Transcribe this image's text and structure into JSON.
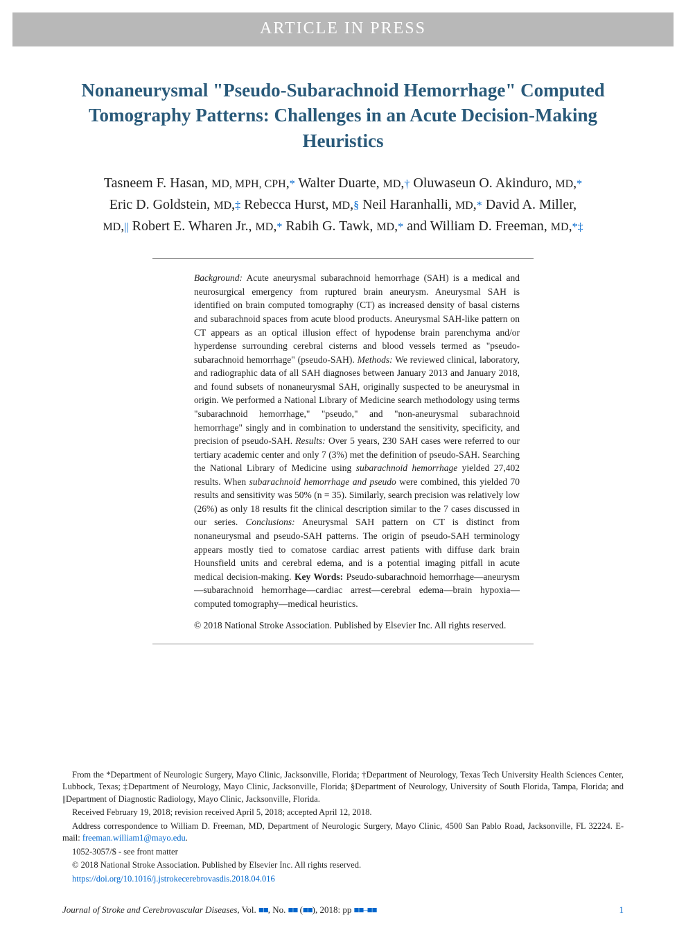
{
  "banner": "ARTICLE IN PRESS",
  "title": "Nonaneurysmal \"Pseudo-Subarachnoid Hemorrhage\" Computed Tomography Patterns: Challenges in an Acute Decision-Making Heuristics",
  "authors_html": "Tasneem F. Hasan, <span class='sc'>MD, MPH, CPH</span>,<span class='aff'>*</span> Walter Duarte, <span class='sc'>MD</span>,<span class='aff'>†</span> Oluwaseun O. Akinduro, <span class='sc'>MD</span>,<span class='aff'>*</span> Eric D. Goldstein, <span class='sc'>MD</span>,<span class='aff'>‡</span> Rebecca Hurst, <span class='sc'>MD</span>,<span class='aff'>§</span> Neil Haranhalli, <span class='sc'>MD</span>,<span class='aff'>*</span> David A. Miller, <span class='sc'>MD</span>,<span class='aff'>||</span> Robert E. Wharen Jr., <span class='sc'>MD</span>,<span class='aff'>*</span> Rabih G. Tawk, <span class='sc'>MD</span>,<span class='aff'>*</span> and William D. Freeman, <span class='sc'>MD</span><span class='aff'>*</span><span class='aff'>‡</span>",
  "authors": [
    {
      "name": "Tasneem F. Hasan",
      "degrees": "MD, MPH, CPH",
      "aff": "*"
    },
    {
      "name": "Walter Duarte",
      "degrees": "MD",
      "aff": "†"
    },
    {
      "name": "Oluwaseun O. Akinduro",
      "degrees": "MD",
      "aff": "*"
    },
    {
      "name": "Eric D. Goldstein",
      "degrees": "MD",
      "aff": "‡"
    },
    {
      "name": "Rebecca Hurst",
      "degrees": "MD",
      "aff": "§"
    },
    {
      "name": "Neil Haranhalli",
      "degrees": "MD",
      "aff": "*"
    },
    {
      "name": "David A. Miller",
      "degrees": "MD",
      "aff": "||"
    },
    {
      "name": "Robert E. Wharen Jr.",
      "degrees": "MD",
      "aff": "*"
    },
    {
      "name": "Rabih G. Tawk",
      "degrees": "MD",
      "aff": "*"
    },
    {
      "name": "William D. Freeman",
      "degrees": "MD",
      "aff": "*‡"
    }
  ],
  "abstract": {
    "background_label": "Background:",
    "background": " Acute aneurysmal subarachnoid hemorrhage (SAH) is a medical and neurosurgical emergency from ruptured brain aneurysm. Aneurysmal SAH is identified on brain computed tomography (CT) as increased density of basal cisterns and subarachnoid spaces from acute blood products. Aneurysmal SAH-like pattern on CT appears as an optical illusion effect of hypodense brain parenchyma and/or hyperdense surrounding cerebral cisterns and blood vessels termed as \"pseudo-subarachnoid hemorrhage\" (pseudo-SAH). ",
    "methods_label": "Methods:",
    "methods": " We reviewed clinical, laboratory, and radiographic data of all SAH diagnoses between January 2013 and January 2018, and found subsets of nonaneurysmal SAH, originally suspected to be aneurysmal in origin. We performed a National Library of Medicine search methodology using terms \"subarachnoid hemorrhage,\" \"pseudo,\" and \"non-aneurysmal subarachnoid hemorrhage\" singly and in combination to understand the sensitivity, specificity, and precision of pseudo-SAH. ",
    "results_label": "Results:",
    "results": " Over 5 years, 230 SAH cases were referred to our tertiary academic center and only 7 (3%) met the definition of pseudo-SAH. Searching the National Library of Medicine using subarachnoid hemorrhage yielded 27,402 results. When subarachnoid hemorrhage and pseudo were combined, this yielded 70 results and sensitivity was 50% (n = 35). Similarly, search precision was relatively low (26%) as only 18 results fit the clinical description similar to the 7 cases discussed in our series. ",
    "conclusions_label": "Conclusions:",
    "conclusions": " Aneurysmal SAH pattern on CT is distinct from nonaneurysmal and pseudo-SAH patterns. The origin of pseudo-SAH terminology appears mostly tied to comatose cardiac arrest patients with diffuse dark brain Hounsfield units and cerebral edema, and is a potential imaging pitfall in acute medical decision-making. ",
    "keywords_label": "Key Words:",
    "keywords": " Pseudo-subarachnoid hemorrhage—aneurysm—subarachnoid hemorrhage—cardiac arrest—cerebral edema—brain hypoxia—computed tomography—medical heuristics.",
    "copyright": "© 2018 National Stroke Association. Published by Elsevier Inc. All rights reserved."
  },
  "footnotes": {
    "affiliations": "From the *Department of Neurologic Surgery, Mayo Clinic, Jacksonville, Florida; †Department of Neurology, Texas Tech University Health Sciences Center, Lubbock, Texas; ‡Department of Neurology, Mayo Clinic, Jacksonville, Florida; §Department of Neurology, University of South Florida, Tampa, Florida; and ||Department of Diagnostic Radiology, Mayo Clinic, Jacksonville, Florida.",
    "dates": "Received February 19, 2018; revision received April 5, 2018; accepted April 12, 2018.",
    "correspondence_pre": "Address correspondence to William D. Freeman, MD, Department of Neurologic Surgery, Mayo Clinic, 4500 San Pablo Road, Jacksonville, FL 32224. E-mail: ",
    "email": "freeman.william1@mayo.edu",
    "correspondence_post": ".",
    "issn": "1052-3057/$ - see front matter",
    "copyright": "© 2018 National Stroke Association. Published by Elsevier Inc. All rights reserved.",
    "doi": "https://doi.org/10.1016/j.jstrokecerebrovasdis.2018.04.016"
  },
  "footer": {
    "journal": "Journal of Stroke and Cerebrovascular Diseases",
    "vol_label": ", Vol. ",
    "vol": "■■",
    "no_label": ", No. ",
    "no": "■■",
    "paren_open": " (",
    "issue": "■■",
    "paren_close": "), ",
    "year": "2018",
    "pp_label": ": pp ",
    "pp": "■■–■■",
    "page": "1"
  },
  "colors": {
    "banner_bg": "#b8b8b8",
    "banner_fg": "#ffffff",
    "title": "#2a5a7a",
    "link": "#0066cc",
    "text": "#1a1a1a"
  }
}
